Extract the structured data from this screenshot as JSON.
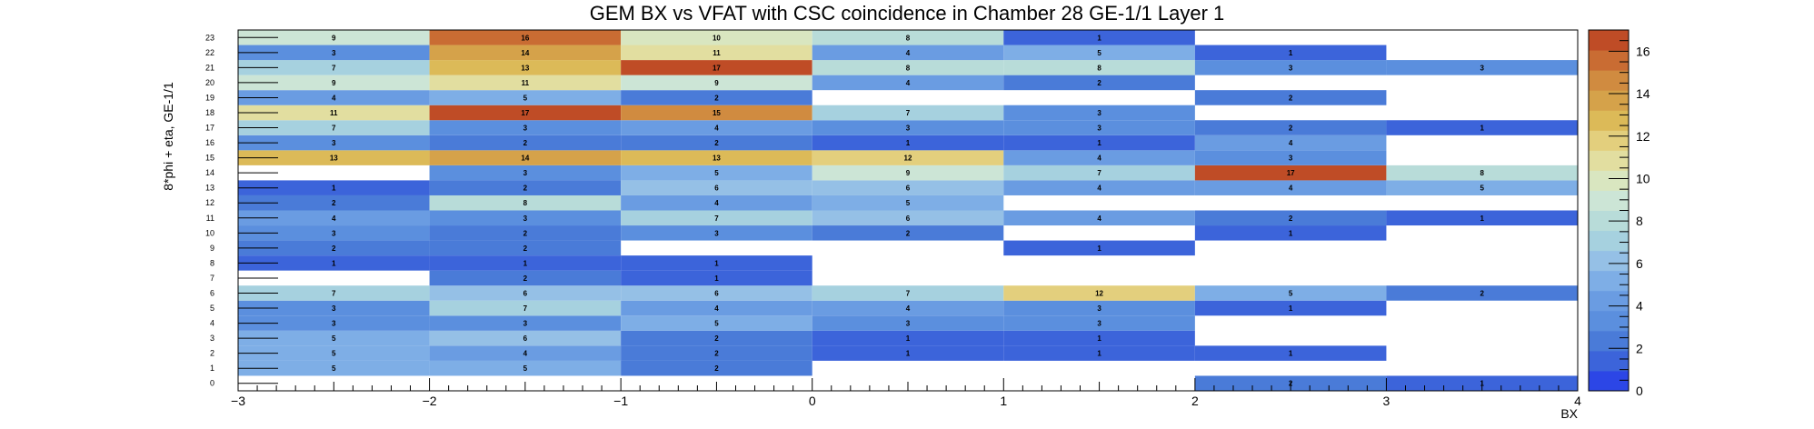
{
  "chart_data": {
    "type": "heatmap",
    "title": "GEM BX vs VFAT with CSC coincidence in Chamber 28 GE-1/1 Layer 1",
    "xlabel": "BX",
    "ylabel": "8*phi + eta, GE-1/1",
    "xlim": [
      -3,
      4
    ],
    "ylim": [
      -0.5,
      23.5
    ],
    "zlim": [
      0,
      17
    ],
    "x_bins": [
      -2.5,
      -1.5,
      -0.5,
      0.5,
      1.5,
      2.5,
      3.5
    ],
    "bin_width": 1,
    "x_ticks": [
      "−3",
      "−2",
      "−1",
      "0",
      "1",
      "2",
      "3",
      "4"
    ],
    "x_tick_values": [
      -3,
      -2,
      -1,
      0,
      1,
      2,
      3,
      4
    ],
    "y_ticks": [
      "0",
      "1",
      "2",
      "3",
      "4",
      "5",
      "6",
      "7",
      "8",
      "9",
      "10",
      "11",
      "12",
      "13",
      "14",
      "15",
      "16",
      "17",
      "18",
      "19",
      "20",
      "21",
      "22",
      "23"
    ],
    "z_ticks": [
      "0",
      "2",
      "4",
      "6",
      "8",
      "10",
      "12",
      "14",
      "16"
    ],
    "z_tick_values": [
      0,
      2,
      4,
      6,
      8,
      10,
      12,
      14,
      16
    ],
    "palette": [
      "#2c46e6",
      "#3c64da",
      "#4a7bd8",
      "#5b8fde",
      "#6a9ce2",
      "#7eaee6",
      "#95c0e6",
      "#a6d1df",
      "#b8dcd9",
      "#cce5d6",
      "#d9e6c0",
      "#e2dea0",
      "#e3cf7d",
      "#dcba58",
      "#d5a24a",
      "#d08b40",
      "#c96c33",
      "#bf4c26"
    ],
    "cells": [
      {
        "x": 2.5,
        "y": 0,
        "v": 2
      },
      {
        "x": 3.5,
        "y": 0,
        "v": 1
      },
      {
        "x": -2.5,
        "y": 1,
        "v": 5
      },
      {
        "x": -1.5,
        "y": 1,
        "v": 5
      },
      {
        "x": -0.5,
        "y": 1,
        "v": 2
      },
      {
        "x": -2.5,
        "y": 2,
        "v": 5
      },
      {
        "x": -1.5,
        "y": 2,
        "v": 4
      },
      {
        "x": -0.5,
        "y": 2,
        "v": 2
      },
      {
        "x": 0.5,
        "y": 2,
        "v": 1
      },
      {
        "x": 1.5,
        "y": 2,
        "v": 1
      },
      {
        "x": 2.5,
        "y": 2,
        "v": 1
      },
      {
        "x": -2.5,
        "y": 3,
        "v": 5
      },
      {
        "x": -1.5,
        "y": 3,
        "v": 6
      },
      {
        "x": -0.5,
        "y": 3,
        "v": 2
      },
      {
        "x": 0.5,
        "y": 3,
        "v": 1
      },
      {
        "x": 1.5,
        "y": 3,
        "v": 1
      },
      {
        "x": -2.5,
        "y": 4,
        "v": 3
      },
      {
        "x": -1.5,
        "y": 4,
        "v": 3
      },
      {
        "x": -0.5,
        "y": 4,
        "v": 5
      },
      {
        "x": 0.5,
        "y": 4,
        "v": 3
      },
      {
        "x": 1.5,
        "y": 4,
        "v": 3
      },
      {
        "x": -2.5,
        "y": 5,
        "v": 3
      },
      {
        "x": -1.5,
        "y": 5,
        "v": 7
      },
      {
        "x": -0.5,
        "y": 5,
        "v": 4
      },
      {
        "x": 0.5,
        "y": 5,
        "v": 4
      },
      {
        "x": 1.5,
        "y": 5,
        "v": 3
      },
      {
        "x": 2.5,
        "y": 5,
        "v": 1
      },
      {
        "x": -2.5,
        "y": 6,
        "v": 7
      },
      {
        "x": -1.5,
        "y": 6,
        "v": 6
      },
      {
        "x": -0.5,
        "y": 6,
        "v": 6
      },
      {
        "x": 0.5,
        "y": 6,
        "v": 7
      },
      {
        "x": 1.5,
        "y": 6,
        "v": 12
      },
      {
        "x": 2.5,
        "y": 6,
        "v": 5
      },
      {
        "x": 3.5,
        "y": 6,
        "v": 2
      },
      {
        "x": -1.5,
        "y": 7,
        "v": 2
      },
      {
        "x": -0.5,
        "y": 7,
        "v": 1
      },
      {
        "x": -2.5,
        "y": 8,
        "v": 1
      },
      {
        "x": -1.5,
        "y": 8,
        "v": 1
      },
      {
        "x": -0.5,
        "y": 8,
        "v": 1
      },
      {
        "x": -2.5,
        "y": 9,
        "v": 2
      },
      {
        "x": -1.5,
        "y": 9,
        "v": 2
      },
      {
        "x": 1.5,
        "y": 9,
        "v": 1
      },
      {
        "x": -2.5,
        "y": 10,
        "v": 3
      },
      {
        "x": -1.5,
        "y": 10,
        "v": 2
      },
      {
        "x": -0.5,
        "y": 10,
        "v": 3
      },
      {
        "x": 0.5,
        "y": 10,
        "v": 2
      },
      {
        "x": 2.5,
        "y": 10,
        "v": 1
      },
      {
        "x": -2.5,
        "y": 11,
        "v": 4
      },
      {
        "x": -1.5,
        "y": 11,
        "v": 3
      },
      {
        "x": -0.5,
        "y": 11,
        "v": 7
      },
      {
        "x": 0.5,
        "y": 11,
        "v": 6
      },
      {
        "x": 1.5,
        "y": 11,
        "v": 4
      },
      {
        "x": 2.5,
        "y": 11,
        "v": 2
      },
      {
        "x": 3.5,
        "y": 11,
        "v": 1
      },
      {
        "x": -2.5,
        "y": 12,
        "v": 2
      },
      {
        "x": -1.5,
        "y": 12,
        "v": 8
      },
      {
        "x": -0.5,
        "y": 12,
        "v": 4
      },
      {
        "x": 0.5,
        "y": 12,
        "v": 5
      },
      {
        "x": -2.5,
        "y": 13,
        "v": 1
      },
      {
        "x": -1.5,
        "y": 13,
        "v": 2
      },
      {
        "x": -0.5,
        "y": 13,
        "v": 6
      },
      {
        "x": 0.5,
        "y": 13,
        "v": 6
      },
      {
        "x": 1.5,
        "y": 13,
        "v": 4
      },
      {
        "x": 2.5,
        "y": 13,
        "v": 4
      },
      {
        "x": 3.5,
        "y": 13,
        "v": 5
      },
      {
        "x": -1.5,
        "y": 14,
        "v": 3
      },
      {
        "x": -0.5,
        "y": 14,
        "v": 5
      },
      {
        "x": 0.5,
        "y": 14,
        "v": 9
      },
      {
        "x": 1.5,
        "y": 14,
        "v": 7
      },
      {
        "x": 2.5,
        "y": 14,
        "v": 17
      },
      {
        "x": 3.5,
        "y": 14,
        "v": 8
      },
      {
        "x": -2.5,
        "y": 15,
        "v": 13
      },
      {
        "x": -1.5,
        "y": 15,
        "v": 14
      },
      {
        "x": -0.5,
        "y": 15,
        "v": 13
      },
      {
        "x": 0.5,
        "y": 15,
        "v": 12
      },
      {
        "x": 1.5,
        "y": 15,
        "v": 4
      },
      {
        "x": 2.5,
        "y": 15,
        "v": 3
      },
      {
        "x": -2.5,
        "y": 16,
        "v": 3
      },
      {
        "x": -1.5,
        "y": 16,
        "v": 2
      },
      {
        "x": -0.5,
        "y": 16,
        "v": 2
      },
      {
        "x": 0.5,
        "y": 16,
        "v": 1
      },
      {
        "x": 1.5,
        "y": 16,
        "v": 1
      },
      {
        "x": 2.5,
        "y": 16,
        "v": 4
      },
      {
        "x": -2.5,
        "y": 17,
        "v": 7
      },
      {
        "x": -1.5,
        "y": 17,
        "v": 3
      },
      {
        "x": -0.5,
        "y": 17,
        "v": 4
      },
      {
        "x": 0.5,
        "y": 17,
        "v": 3
      },
      {
        "x": 1.5,
        "y": 17,
        "v": 3
      },
      {
        "x": 2.5,
        "y": 17,
        "v": 2
      },
      {
        "x": 3.5,
        "y": 17,
        "v": 1
      },
      {
        "x": -2.5,
        "y": 18,
        "v": 11
      },
      {
        "x": -1.5,
        "y": 18,
        "v": 17
      },
      {
        "x": -0.5,
        "y": 18,
        "v": 15
      },
      {
        "x": 0.5,
        "y": 18,
        "v": 7
      },
      {
        "x": 1.5,
        "y": 18,
        "v": 3
      },
      {
        "x": -2.5,
        "y": 19,
        "v": 4
      },
      {
        "x": -1.5,
        "y": 19,
        "v": 5
      },
      {
        "x": -0.5,
        "y": 19,
        "v": 2
      },
      {
        "x": 2.5,
        "y": 19,
        "v": 2
      },
      {
        "x": -2.5,
        "y": 20,
        "v": 9
      },
      {
        "x": -1.5,
        "y": 20,
        "v": 11
      },
      {
        "x": -0.5,
        "y": 20,
        "v": 9
      },
      {
        "x": 0.5,
        "y": 20,
        "v": 4
      },
      {
        "x": 1.5,
        "y": 20,
        "v": 2
      },
      {
        "x": -2.5,
        "y": 21,
        "v": 7
      },
      {
        "x": -1.5,
        "y": 21,
        "v": 13
      },
      {
        "x": -0.5,
        "y": 21,
        "v": 17
      },
      {
        "x": 0.5,
        "y": 21,
        "v": 8
      },
      {
        "x": 1.5,
        "y": 21,
        "v": 8
      },
      {
        "x": 2.5,
        "y": 21,
        "v": 3
      },
      {
        "x": 3.5,
        "y": 21,
        "v": 3
      },
      {
        "x": -2.5,
        "y": 22,
        "v": 3
      },
      {
        "x": -1.5,
        "y": 22,
        "v": 14
      },
      {
        "x": -0.5,
        "y": 22,
        "v": 11
      },
      {
        "x": 0.5,
        "y": 22,
        "v": 4
      },
      {
        "x": 1.5,
        "y": 22,
        "v": 5
      },
      {
        "x": 2.5,
        "y": 22,
        "v": 1
      },
      {
        "x": -2.5,
        "y": 23,
        "v": 9
      },
      {
        "x": -1.5,
        "y": 23,
        "v": 16
      },
      {
        "x": -0.5,
        "y": 23,
        "v": 10
      },
      {
        "x": 0.5,
        "y": 23,
        "v": 8
      },
      {
        "x": 1.5,
        "y": 23,
        "v": 1
      }
    ]
  }
}
